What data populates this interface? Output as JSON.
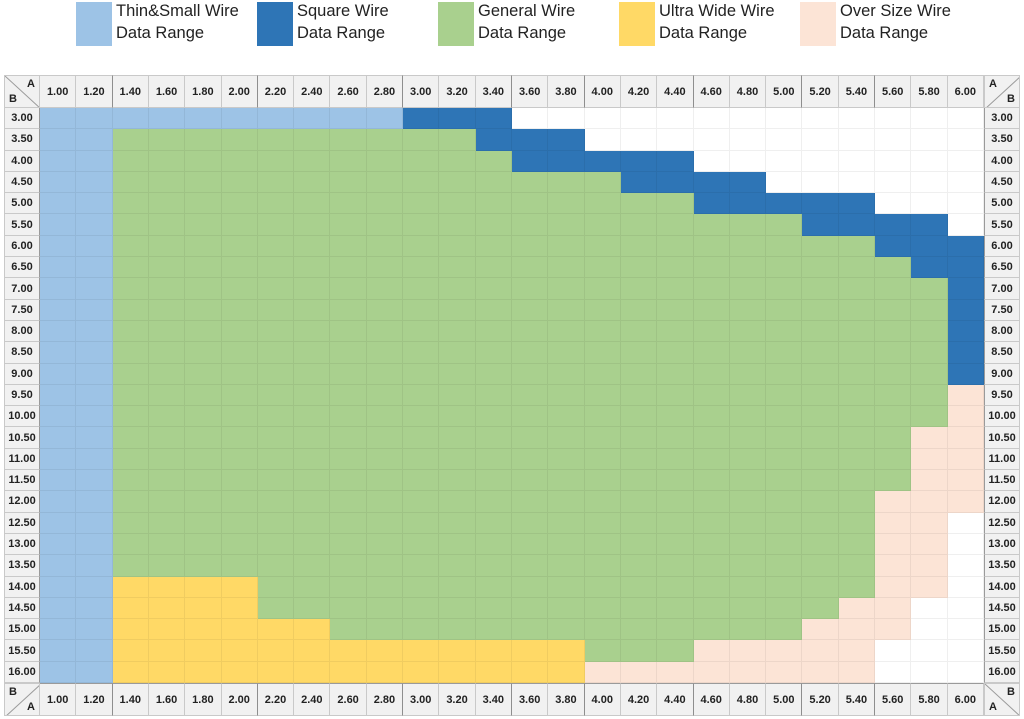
{
  "legend": [
    {
      "key": "T",
      "line1": "Thin&Small Wire",
      "line2": "Data Range",
      "color": "#9dc3e6"
    },
    {
      "key": "S",
      "line1": "Square Wire",
      "line2": "Data Range",
      "color": "#2e75b6"
    },
    {
      "key": "G",
      "line1": "General Wire",
      "line2": "Data Range",
      "color": "#a9d08e"
    },
    {
      "key": "U",
      "line1": "Ultra Wide Wire",
      "line2": "Data Range",
      "color": "#ffd966"
    },
    {
      "key": "O",
      "line1": "Over Size Wire",
      "line2": "Data Range",
      "color": "#fce4d6"
    }
  ],
  "corner_labels": {
    "col_axis": "A",
    "row_axis": "B"
  },
  "chart_data": {
    "type": "heatmap",
    "title": "",
    "xlabel": "A",
    "ylabel": "B",
    "x": [
      "1.00",
      "1.20",
      "1.40",
      "1.60",
      "1.80",
      "2.00",
      "2.20",
      "2.40",
      "2.60",
      "2.80",
      "3.00",
      "3.20",
      "3.40",
      "3.60",
      "3.80",
      "4.00",
      "4.20",
      "4.40",
      "4.60",
      "4.80",
      "5.00",
      "5.20",
      "5.40",
      "5.60",
      "5.80",
      "6.00"
    ],
    "y": [
      "3.00",
      "3.50",
      "4.00",
      "4.50",
      "5.00",
      "5.50",
      "6.00",
      "6.50",
      "7.00",
      "7.50",
      "8.00",
      "8.50",
      "9.00",
      "9.50",
      "10.00",
      "10.50",
      "11.00",
      "11.50",
      "12.00",
      "12.50",
      "13.00",
      "13.50",
      "14.00",
      "14.50",
      "15.00",
      "15.50",
      "16.00"
    ],
    "category_key": {
      "T": "Thin&Small Wire Data Range",
      "S": "Square Wire Data Range",
      "G": "General Wire Data Range",
      "U": "Ultra Wide Wire Data Range",
      "O": "Over Size Wire Data Range",
      ".": "none"
    },
    "rows": [
      "TTTTTTTTTTSSS.............",
      "TTGGGGGGGGGGSSS...........",
      "TTGGGGGGGGGGGSSSSS........",
      "TTGGGGGGGGGGGGGGSSSS......",
      "TTGGGGGGGGGGGGGGGGSSSSS...",
      "TTGGGGGGGGGGGGGGGGGGGSSSS.",
      "TTGGGGGGGGGGGGGGGGGGGGGSSS",
      "TTGGGGGGGGGGGGGGGGGGGGGGSS",
      "TTGGGGGGGGGGGGGGGGGGGGGGGS",
      "TTGGGGGGGGGGGGGGGGGGGGGGGS",
      "TTGGGGGGGGGGGGGGGGGGGGGGGS",
      "TTGGGGGGGGGGGGGGGGGGGGGGGS",
      "TTGGGGGGGGGGGGGGGGGGGGGGGS",
      "TTGGGGGGGGGGGGGGGGGGGGGGGO",
      "TTGGGGGGGGGGGGGGGGGGGGGGGO",
      "TTGGGGGGGGGGGGGGGGGGGGGGOO",
      "TTGGGGGGGGGGGGGGGGGGGGGGOO",
      "TTGGGGGGGGGGGGGGGGGGGGGGOO",
      "TTGGGGGGGGGGGGGGGGGGGGGOOO",
      "TTGGGGGGGGGGGGGGGGGGGGGOO.",
      "TTGGGGGGGGGGGGGGGGGGGGGOO.",
      "TTGGGGGGGGGGGGGGGGGGGGGOO.",
      "TTUUUUGGGGGGGGGGGGGGGGGOO.",
      "TTUUUUGGGGGGGGGGGGGGGGOO..",
      "TTUUUUUUGGGGGGGGGGGGGOOO..",
      "TTUUUUUUUUUUUUUGGGOOOOO...",
      "TTUUUUUUUUUUUUUOOOOOOOO..."
    ]
  }
}
